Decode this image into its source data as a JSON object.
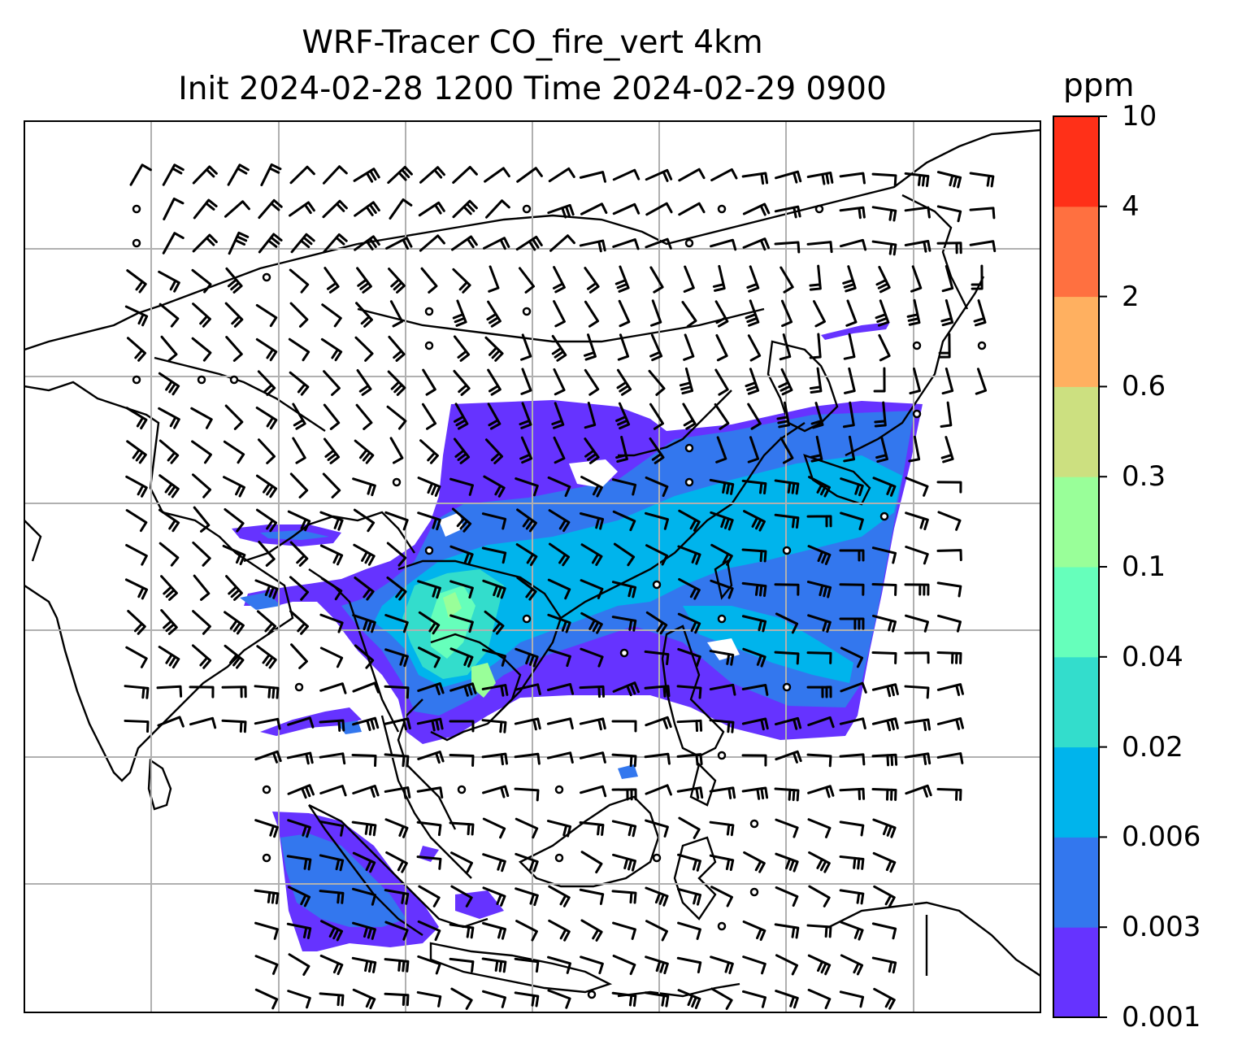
{
  "title": {
    "line1": "WRF-Tracer CO_fire_vert 4km",
    "line2": "Init 2024-02-28 1200 Time 2024-02-29 0900"
  },
  "colorbar": {
    "unit": "ppm",
    "ticks": [
      "0.001",
      "0.003",
      "0.006",
      "0.02",
      "0.04",
      "0.1",
      "0.3",
      "0.6",
      "2",
      "4",
      "10"
    ],
    "colors": [
      "#6633ff",
      "#3377ee",
      "#00b4ec",
      "#33ddcc",
      "#66ffbb",
      "#99ff99",
      "#cce080",
      "#ffb060",
      "#ff7040",
      "#ff3018"
    ]
  },
  "map": {
    "grid_color": "#b0b0b0",
    "coastline_color": "#000000",
    "barb_color": "#000000"
  }
}
